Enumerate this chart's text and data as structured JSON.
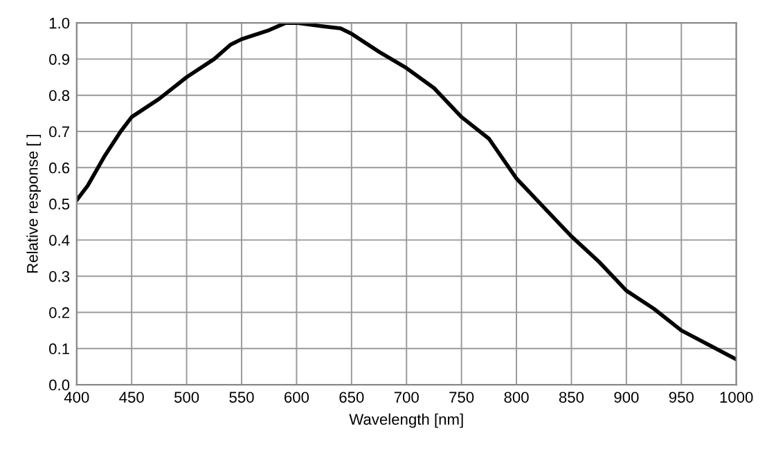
{
  "chart_data": {
    "type": "line",
    "xlabel": "Wavelength [nm]",
    "ylabel": "Relative response [ ]",
    "series": [
      {
        "color": "#000000",
        "x": [
          400,
          410,
          425,
          440,
          450,
          475,
          500,
          525,
          540,
          550,
          575,
          590,
          600,
          625,
          640,
          650,
          675,
          700,
          725,
          750,
          775,
          800,
          825,
          850,
          875,
          900,
          925,
          950,
          975,
          1000
        ],
        "values": [
          0.51,
          0.55,
          0.63,
          0.7,
          0.74,
          0.79,
          0.85,
          0.9,
          0.94,
          0.955,
          0.98,
          1.0,
          1.0,
          0.99,
          0.985,
          0.97,
          0.92,
          0.875,
          0.82,
          0.74,
          0.68,
          0.57,
          0.49,
          0.41,
          0.34,
          0.26,
          0.21,
          0.15,
          0.11,
          0.07
        ]
      }
    ],
    "xlim": [
      400,
      1000
    ],
    "xticks": [
      400,
      450,
      500,
      550,
      600,
      650,
      700,
      750,
      800,
      850,
      900,
      950,
      1000
    ],
    "ylim": [
      0,
      1.0
    ],
    "yticks": [
      {
        "value": 0,
        "label": "0.0"
      },
      0.1,
      0.2,
      0.3,
      0.4,
      0.5,
      0.6,
      0.7,
      0.8,
      0.9,
      {
        "value": 1.0,
        "label": "1.0"
      }
    ],
    "grid": true,
    "legend": false,
    "marker": "none",
    "line_style": "solid"
  }
}
